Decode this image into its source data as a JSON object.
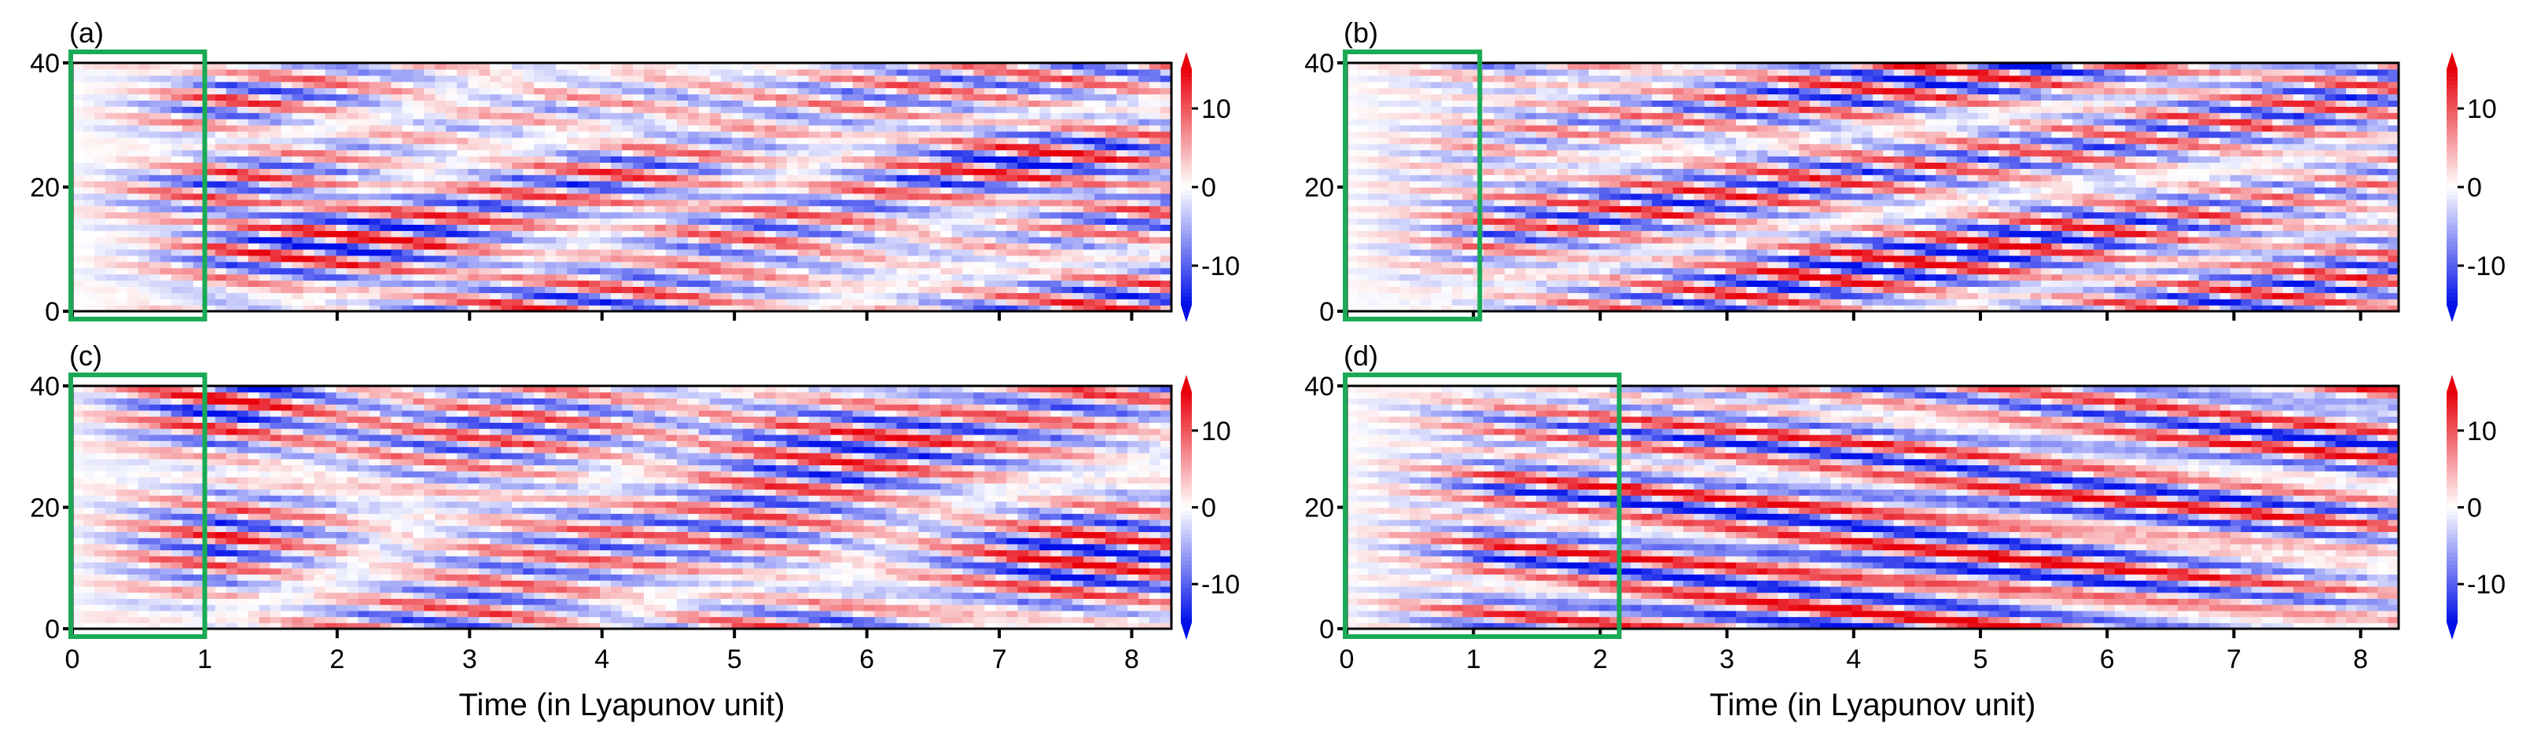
{
  "chart_data": [
    {
      "type": "heatmap",
      "panel_label": "(a)",
      "x_range": [
        0,
        8.3
      ],
      "y_range": [
        0,
        40
      ],
      "x_ticks": [
        "0",
        "1",
        "2",
        "3",
        "4",
        "5",
        "6",
        "7",
        "8"
      ],
      "y_ticks": [
        "0",
        "20",
        "40"
      ],
      "xlabel": "",
      "highlight_box_x": [
        0,
        1
      ],
      "colorbar": {
        "range": [
          -15,
          15
        ],
        "ticks": [
          "10",
          "0",
          "-10"
        ]
      },
      "seed": 11
    },
    {
      "type": "heatmap",
      "panel_label": "(b)",
      "x_range": [
        0,
        8.3
      ],
      "y_range": [
        0,
        40
      ],
      "x_ticks": [
        "0",
        "1",
        "2",
        "3",
        "4",
        "5",
        "6",
        "7",
        "8"
      ],
      "y_ticks": [
        "0",
        "20",
        "40"
      ],
      "xlabel": "",
      "highlight_box_x": [
        0,
        1.05
      ],
      "colorbar": {
        "range": [
          -15,
          15
        ],
        "ticks": [
          "10",
          "0",
          "-10"
        ]
      },
      "seed": 23
    },
    {
      "type": "heatmap",
      "panel_label": "(c)",
      "x_range": [
        0,
        8.3
      ],
      "y_range": [
        0,
        40
      ],
      "x_ticks": [
        "0",
        "1",
        "2",
        "3",
        "4",
        "5",
        "6",
        "7",
        "8"
      ],
      "y_ticks": [
        "0",
        "20",
        "40"
      ],
      "xlabel": "Time (in Lyapunov unit)",
      "highlight_box_x": [
        0,
        1
      ],
      "colorbar": {
        "range": [
          -15,
          15
        ],
        "ticks": [
          "10",
          "0",
          "-10"
        ]
      },
      "seed": 37
    },
    {
      "type": "heatmap",
      "panel_label": "(d)",
      "x_range": [
        0,
        8.3
      ],
      "y_range": [
        0,
        40
      ],
      "x_ticks": [
        "0",
        "1",
        "2",
        "3",
        "4",
        "5",
        "6",
        "7",
        "8"
      ],
      "y_ticks": [
        "0",
        "20",
        "40"
      ],
      "xlabel": "Time (in Lyapunov unit)",
      "highlight_box_x": [
        0,
        2.15
      ],
      "colorbar": {
        "range": [
          -15,
          15
        ],
        "ticks": [
          "10",
          "0",
          "-10"
        ]
      },
      "seed": 53
    }
  ],
  "colors": {
    "positive": "#e8000b",
    "negative": "#0010e8",
    "zero": "#ffffff",
    "highlight_box": "#1aaa55"
  }
}
